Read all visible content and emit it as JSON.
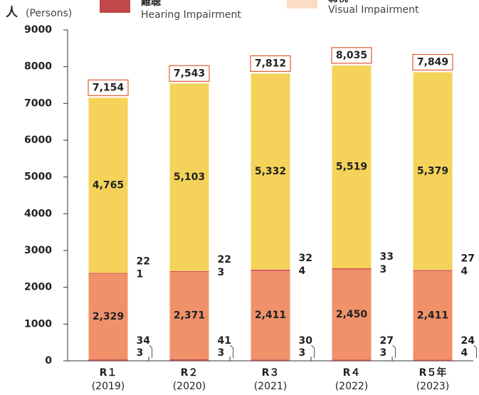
{
  "chart_data": {
    "type": "stacked_bar",
    "y_label": "人",
    "y_unit": "(Persons)",
    "legend": [
      {
        "label": "難聴",
        "sublabel": "Hearing Impairment",
        "color": "#c0474a"
      },
      {
        "label": "弱視",
        "sublabel": "Visual Impairment",
        "color": "#fbdcc4"
      }
    ],
    "categories": [
      "R１",
      "R２",
      "R３",
      "R４",
      "R５年"
    ],
    "years": [
      "(2019)",
      "(2020)",
      "(2021)",
      "(2022)",
      "(2023)"
    ],
    "series": [
      {
        "color": "#fbdcc4",
        "values": [
          3,
          3,
          3,
          3,
          4
        ]
      },
      {
        "color": "#c0474a",
        "values": [
          34,
          41,
          30,
          27,
          24
        ]
      },
      {
        "color": "#f0916a",
        "values": [
          2329,
          2371,
          2411,
          2450,
          2411
        ],
        "value_labels": [
          "2,329",
          "2,371",
          "2,411",
          "2,450",
          "2,411"
        ]
      },
      {
        "color": "#8a3a2a",
        "values": [
          1,
          3,
          4,
          3,
          4
        ]
      },
      {
        "color": "#d9525a",
        "values": [
          22,
          22,
          32,
          33,
          27
        ]
      },
      {
        "color": "#f5d35a",
        "values": [
          4765,
          5103,
          5332,
          5519,
          5379
        ],
        "value_labels": [
          "4,765",
          "5,103",
          "5,332",
          "5,519",
          "5,379"
        ]
      }
    ],
    "totals": {
      "values": [
        7154,
        7543,
        7812,
        8035,
        7849
      ],
      "value_labels": [
        "7,154",
        "7,543",
        "7,812",
        "8,035",
        "7,849"
      ]
    },
    "ylim": [
      0,
      9000
    ],
    "yticks": [
      0,
      1000,
      2000,
      3000,
      4000,
      5000,
      6000,
      7000,
      8000,
      9000
    ]
  }
}
